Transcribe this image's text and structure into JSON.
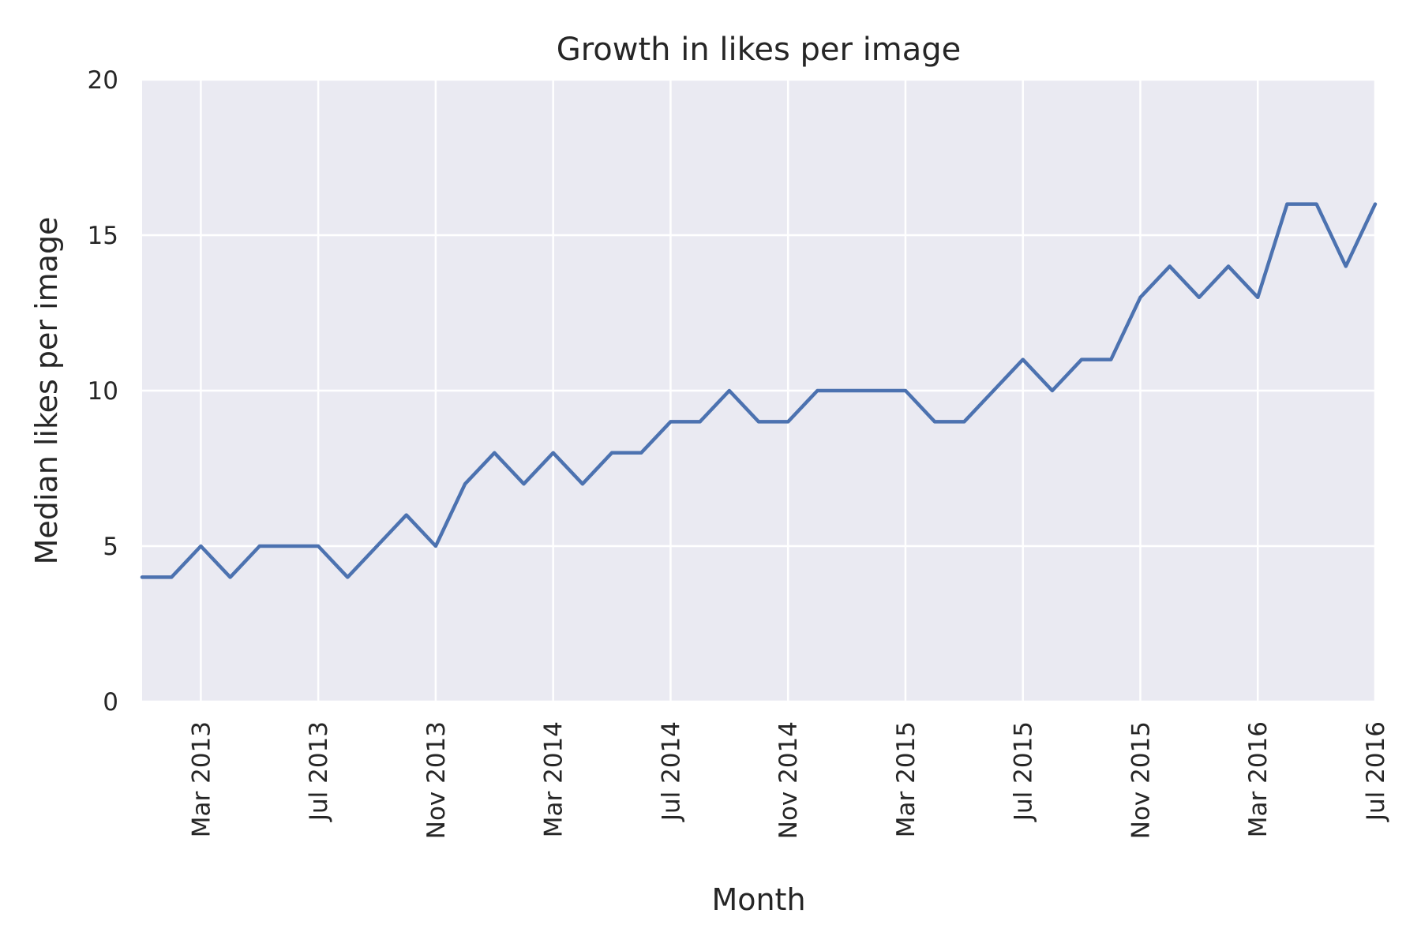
{
  "chart_data": {
    "type": "line",
    "title": "Growth in likes per image",
    "xlabel": "Month",
    "ylabel": "Median likes per image",
    "ylim": [
      0,
      20
    ],
    "xlim": [
      "2013-01",
      "2016-07"
    ],
    "grid": true,
    "legend": "none",
    "y_ticks": [
      {
        "value": 0,
        "label": "0"
      },
      {
        "value": 5,
        "label": "5"
      },
      {
        "value": 10,
        "label": "10"
      },
      {
        "value": 15,
        "label": "15"
      },
      {
        "value": 20,
        "label": "20"
      }
    ],
    "x_ticks": [
      {
        "value": "2013-03",
        "label": "Mar 2013"
      },
      {
        "value": "2013-07",
        "label": "Jul 2013"
      },
      {
        "value": "2013-11",
        "label": "Nov 2013"
      },
      {
        "value": "2014-03",
        "label": "Mar 2014"
      },
      {
        "value": "2014-07",
        "label": "Jul 2014"
      },
      {
        "value": "2014-11",
        "label": "Nov 2014"
      },
      {
        "value": "2015-03",
        "label": "Mar 2015"
      },
      {
        "value": "2015-07",
        "label": "Jul 2015"
      },
      {
        "value": "2015-11",
        "label": "Nov 2015"
      },
      {
        "value": "2016-03",
        "label": "Mar 2016"
      },
      {
        "value": "2016-07",
        "label": "Jul 2016"
      }
    ],
    "series": [
      {
        "color": "#4c72b0",
        "x": [
          "2013-01",
          "2013-02",
          "2013-03",
          "2013-04",
          "2013-05",
          "2013-06",
          "2013-07",
          "2013-08",
          "2013-09",
          "2013-10",
          "2013-11",
          "2013-12",
          "2014-01",
          "2014-02",
          "2014-03",
          "2014-04",
          "2014-05",
          "2014-06",
          "2014-07",
          "2014-08",
          "2014-09",
          "2014-10",
          "2014-11",
          "2014-12",
          "2015-01",
          "2015-02",
          "2015-03",
          "2015-04",
          "2015-05",
          "2015-06",
          "2015-07",
          "2015-08",
          "2015-09",
          "2015-10",
          "2015-11",
          "2015-12",
          "2016-01",
          "2016-02",
          "2016-03",
          "2016-04",
          "2016-05",
          "2016-06",
          "2016-07"
        ],
        "values": [
          4,
          4,
          5,
          4,
          5,
          5,
          5,
          4,
          5,
          6,
          5,
          7,
          8,
          7,
          8,
          7,
          8,
          8,
          9,
          9,
          10,
          9,
          9,
          10,
          10,
          10,
          10,
          9,
          9,
          10,
          11,
          10,
          11,
          11,
          13,
          14,
          13,
          14,
          13,
          16,
          16,
          14,
          16
        ]
      }
    ],
    "colors": {
      "plot_background": "#eaeaf2",
      "grid": "#ffffff",
      "text": "#262626"
    }
  }
}
